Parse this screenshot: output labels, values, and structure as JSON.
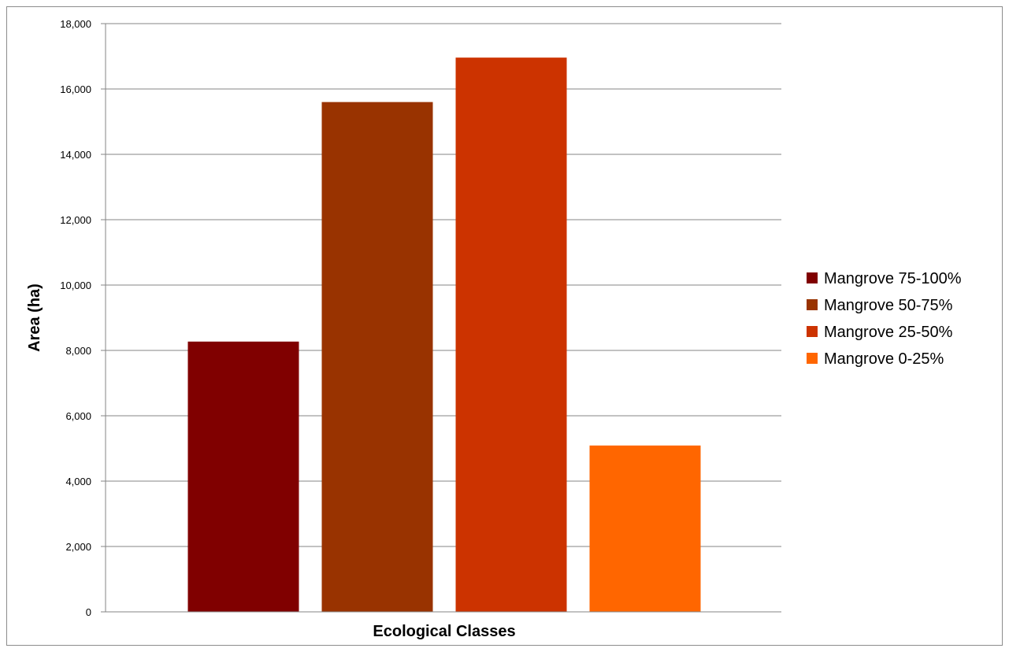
{
  "chart_data": {
    "type": "bar",
    "title": "",
    "xlabel": "Ecological Classes",
    "ylabel": "Area (ha)",
    "ylim": [
      0,
      18000
    ],
    "yticks": [
      "0",
      "2,000",
      "4,000",
      "6,000",
      "8,000",
      "10,000",
      "12,000",
      "14,000",
      "16,000",
      "18,000"
    ],
    "grid": true,
    "legend_position": "right",
    "series": [
      {
        "name": "Mangrove 75-100%",
        "value": 8270,
        "color": "#800000"
      },
      {
        "name": "Mangrove 50-75%",
        "value": 15600,
        "color": "#993300"
      },
      {
        "name": "Mangrove 25-50%",
        "value": 16960,
        "color": "#cc3300"
      },
      {
        "name": "Mangrove 0-25%",
        "value": 5090,
        "color": "#ff6600"
      }
    ]
  }
}
